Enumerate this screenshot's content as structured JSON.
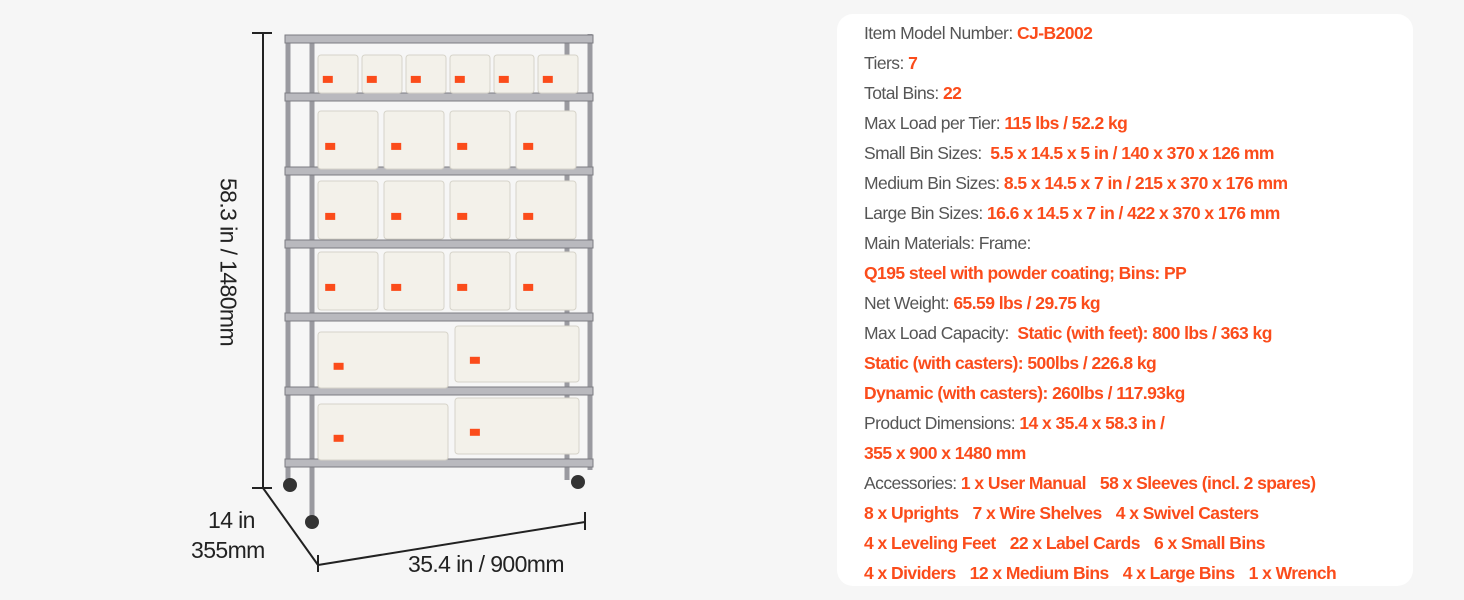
{
  "dimensions": {
    "height": "58.3 in / 1480mm",
    "depth_in": "14 in",
    "depth_mm": "355mm",
    "width": "35.4 in / 900mm"
  },
  "colors": {
    "accent": "#fb4c1b",
    "label": "#555555",
    "frame": "#9a9aa0",
    "bin": "#f3f1ea"
  },
  "specs": [
    {
      "label": "Item Model Number: ",
      "value": "CJ-B2002"
    },
    {
      "label": "Tiers: ",
      "value": "7"
    },
    {
      "label": "Total Bins: ",
      "value": "22"
    },
    {
      "label": "Max Load per Tier: ",
      "value": "115 lbs / 52.2 kg"
    },
    {
      "label": "Small Bin Sizes:  ",
      "value": "5.5 x 14.5 x 5 in / 140 x 370 x 126 mm"
    },
    {
      "label": "Medium Bin Sizes: ",
      "value": "8.5 x 14.5 x 7 in / 215 x 370 x 176 mm"
    },
    {
      "label": "Large Bin Sizes: ",
      "value": "16.6 x 14.5 x 7 in / 422 x 370 x 176 mm"
    },
    {
      "label": "Main Materials: Frame:",
      "value": ""
    },
    {
      "label": "",
      "value": "Q195 steel with powder coating; Bins: PP"
    },
    {
      "label": "Net Weight: ",
      "value": "65.59 lbs / 29.75 kg"
    },
    {
      "label": "Max Load Capacity:  ",
      "value": "Static (with feet): 800 lbs / 363 kg"
    },
    {
      "label": "",
      "value": "Static (with casters): 500lbs / 226.8 kg"
    },
    {
      "label": "",
      "value": "Dynamic (with casters): 260lbs / 117.93kg"
    },
    {
      "label": "Product Dimensions: ",
      "value": "14 x 35.4 x 58.3 in /"
    },
    {
      "label": "",
      "value": "355 x 900 x 1480 mm"
    }
  ],
  "accessories_label": "Accessories: ",
  "accessories_lines": [
    [
      "1 x User Manual",
      "58 x Sleeves (incl. 2 spares)"
    ],
    [
      "8 x Uprights",
      "7 x Wire Shelves",
      "4 x Swivel Casters"
    ],
    [
      "4 x Leveling Feet",
      "22 x Label Cards",
      "6 x Small Bins"
    ],
    [
      "4 x Dividers",
      "12 x Medium Bins",
      "4 x Large Bins",
      "1 x Wrench"
    ]
  ]
}
